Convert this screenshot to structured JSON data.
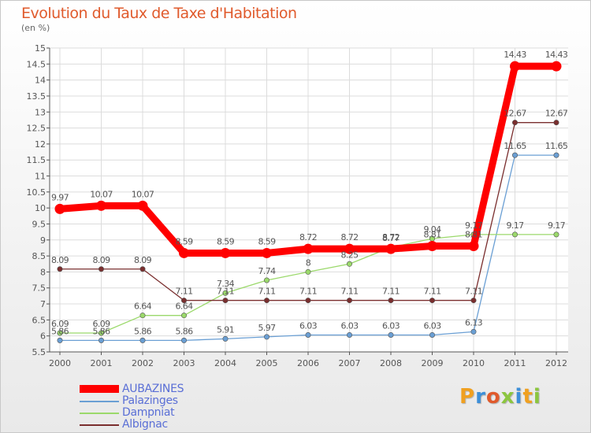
{
  "title": "Evolution du Taux de Taxe d'Habitation",
  "unit_label": "(en %)",
  "logo_text": "Proxiti",
  "chart_data": {
    "type": "line",
    "title": "Evolution du Taux de Taxe d'Habitation",
    "ylabel": "(en %)",
    "xlabel": "",
    "x": [
      "2000",
      "2001",
      "2002",
      "2003",
      "2004",
      "2005",
      "2006",
      "2007",
      "2008",
      "2009",
      "2010",
      "2011",
      "2012"
    ],
    "ylim": [
      5.5,
      15
    ],
    "yticks": [
      "5.5",
      "6",
      "6.5",
      "7",
      "7.5",
      "8",
      "8.5",
      "9",
      "9.5",
      "10",
      "10.5",
      "11",
      "11.5",
      "12",
      "12.5",
      "13",
      "13.5",
      "14",
      "14.5",
      "15"
    ],
    "grid": true,
    "legend_position": "bottom-left",
    "series": [
      {
        "name": "AUBAZINES",
        "color": "#ff0000",
        "values": [
          9.97,
          10.07,
          10.07,
          8.59,
          8.59,
          8.59,
          8.72,
          8.72,
          8.72,
          8.81,
          8.81,
          14.43,
          14.43
        ],
        "labels": [
          "9.97",
          "10.07",
          "10.07",
          "8.59",
          "8.59",
          "8.59",
          "8.72",
          "8.72",
          "8.72",
          "8.81",
          "8.81",
          "14.43",
          "14.43"
        ]
      },
      {
        "name": "Palazinges",
        "color": "#6a9fd4",
        "values": [
          5.86,
          5.86,
          5.86,
          5.86,
          5.91,
          5.97,
          6.03,
          6.03,
          6.03,
          6.03,
          6.13,
          11.65,
          11.65
        ],
        "labels": [
          "5.86",
          "5.86",
          "5.86",
          "5.86",
          "5.91",
          "5.97",
          "6.03",
          "6.03",
          "6.03",
          "6.03",
          "6.13",
          "11.65",
          "11.65"
        ]
      },
      {
        "name": "Dampniat",
        "color": "#9bd96b",
        "values": [
          6.09,
          6.09,
          6.64,
          6.64,
          7.34,
          7.74,
          8,
          8.25,
          8.77,
          9.04,
          9.17,
          9.17,
          9.17
        ],
        "labels": [
          "6.09",
          "6.09",
          "6.64",
          "6.64",
          "7.34",
          "7.74",
          "8",
          "8.25",
          "8.77",
          "9.04",
          "9.17",
          "9.17",
          "9.17"
        ]
      },
      {
        "name": "Albignac",
        "color": "#7a2e2e",
        "values": [
          8.09,
          8.09,
          8.09,
          7.11,
          7.11,
          7.11,
          7.11,
          7.11,
          7.11,
          7.11,
          7.11,
          12.67,
          12.67
        ],
        "labels": [
          "8.09",
          "8.09",
          "8.09",
          "7.11",
          "7.11",
          "7.11",
          "7.11",
          "7.11",
          "7.11",
          "7.11",
          "7.11",
          "12.67",
          "12.67"
        ]
      }
    ]
  }
}
